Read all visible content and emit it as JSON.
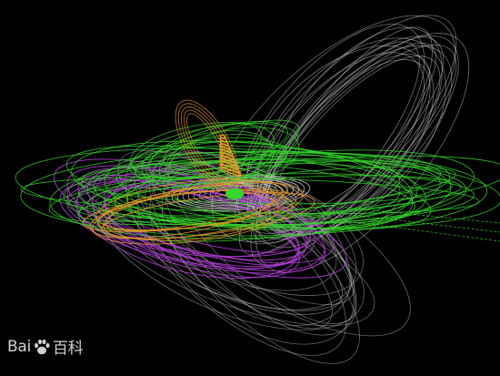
{
  "watermark": {
    "text_left": "Bai",
    "text_right": "百科",
    "icon": "paw-icon"
  },
  "colors": {
    "background": "#000000",
    "green": "#34d82a",
    "purple": "#b13cd6",
    "gray": "#c8c8c8",
    "orange": "#e69a2a"
  }
}
